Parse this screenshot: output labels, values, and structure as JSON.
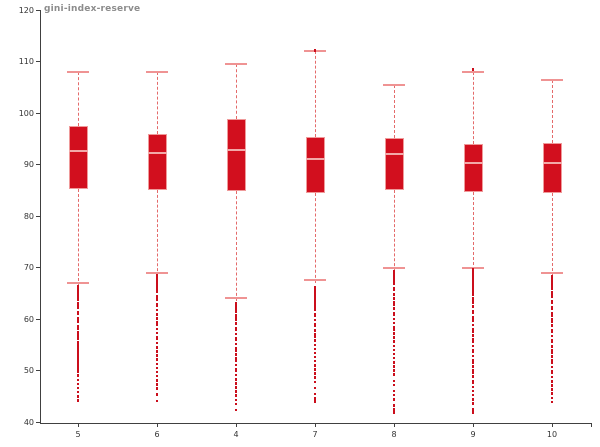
{
  "chart_data": {
    "type": "boxplot",
    "title": "gini-index-reserve",
    "xlabel": "",
    "ylabel": "",
    "ylim": [
      40,
      120
    ],
    "yticks": [
      120,
      110,
      100,
      90,
      80,
      70,
      60,
      50,
      40
    ],
    "grid": false,
    "legend": "none",
    "categories": [
      "5",
      "6",
      "4",
      "7",
      "8",
      "9",
      "10"
    ],
    "series": [
      {
        "category": "5",
        "whisker_high": 108,
        "q3": 97.4,
        "median": 92.6,
        "q1": 85.2,
        "whisker_low": 67,
        "outliers_high": [],
        "outliers_low": [
          66.3,
          65.8,
          65.4,
          65,
          64.6,
          64.2,
          63.8,
          63,
          62.6,
          62.2,
          61.4,
          61,
          60.2,
          59.8,
          59.4,
          58.6,
          58.2,
          57.4,
          57,
          56.6,
          56.2,
          55.4,
          55,
          54.6,
          54.2,
          53.8,
          53.4,
          53,
          52.6,
          52.2,
          51.8,
          51.4,
          51,
          50.6,
          50.2,
          49.8,
          49,
          48.2,
          47.4,
          46.6,
          45.8,
          45,
          44.2
        ]
      },
      {
        "category": "6",
        "whisker_high": 108,
        "q3": 96,
        "median": 92.2,
        "q1": 85,
        "whisker_low": 69,
        "outliers_high": [],
        "outliers_low": [
          68.5,
          68.1,
          67.7,
          67.3,
          66.9,
          66.5,
          66.1,
          65.7,
          65.3,
          64.5,
          64.1,
          63.7,
          62.9,
          62.5,
          61.7,
          60.9,
          60.1,
          59.3,
          58.9,
          58.1,
          57.3,
          56.5,
          56.1,
          55.3,
          54.5,
          53.7,
          52.9,
          52.1,
          51.3,
          50.5,
          49.7,
          48.9,
          48.1,
          47.3,
          46.5,
          45.3,
          44.1
        ]
      },
      {
        "category": "4",
        "whisker_high": 109.5,
        "q3": 98.8,
        "median": 92.9,
        "q1": 84.8,
        "whisker_low": 64,
        "outliers_high": [],
        "outliers_low": [
          63.1,
          62.7,
          62.3,
          61.9,
          61.5,
          60.7,
          60.3,
          59.9,
          59.1,
          58.3,
          57.9,
          57.1,
          56.3,
          55.9,
          55.1,
          54.3,
          53.9,
          53.1,
          52.3,
          51.9,
          51.1,
          50.3,
          49.9,
          49.1,
          48.3,
          47.5,
          46.7,
          45.9,
          45.1,
          44.3,
          43.5,
          42.3
        ]
      },
      {
        "category": "7",
        "whisker_high": 112,
        "q3": 95.4,
        "median": 91,
        "q1": 84.4,
        "whisker_low": 67.5,
        "outliers_high": [
          112.1
        ],
        "outliers_low": [
          66.2,
          65.8,
          65.4,
          65,
          64.6,
          64.2,
          63.8,
          63.4,
          63,
          62.6,
          62.2,
          61.8,
          61,
          60.6,
          59.8,
          59,
          58.6,
          57.8,
          57,
          56.6,
          55.8,
          55,
          54.2,
          53.4,
          52.6,
          51.8,
          51,
          50.2,
          49.4,
          48.6,
          47.8,
          46.6,
          45.4,
          44.6,
          44
        ]
      },
      {
        "category": "8",
        "whisker_high": 105.5,
        "q3": 95.2,
        "median": 92,
        "q1": 85,
        "whisker_low": 70,
        "outliers_high": [],
        "outliers_low": [
          69.2,
          68.8,
          68.4,
          68,
          67.6,
          67.2,
          66.8,
          66,
          65.6,
          64.8,
          64,
          63.2,
          62.8,
          62,
          61.2,
          60.8,
          60,
          59.2,
          58.4,
          58,
          57.2,
          56.4,
          55.6,
          54.8,
          54,
          53.2,
          52.4,
          51.6,
          50.8,
          50,
          49.2,
          48,
          47.2,
          46,
          45.2,
          44.4,
          43.2,
          42.4,
          41.8
        ]
      },
      {
        "category": "9",
        "whisker_high": 108,
        "q3": 94,
        "median": 90.2,
        "q1": 84.7,
        "whisker_low": 70,
        "outliers_high": [
          108.4
        ],
        "outliers_low": [
          69.6,
          69.2,
          68.8,
          68.4,
          68,
          67.6,
          67.2,
          66.8,
          66.4,
          66,
          65.6,
          65.2,
          64.8,
          64,
          63.6,
          63.2,
          62.4,
          61.6,
          61.2,
          60.4,
          60,
          59.6,
          58.8,
          58,
          57.6,
          56.8,
          56,
          55.6,
          54.8,
          54,
          53.6,
          52.8,
          52,
          51.6,
          50.8,
          50,
          49.6,
          48.8,
          48,
          47.6,
          46.8,
          46,
          45.2,
          44.4,
          43.6,
          42.4,
          41.8
        ]
      },
      {
        "category": "10",
        "whisker_high": 106.4,
        "q3": 94.2,
        "median": 90.3,
        "q1": 84.5,
        "whisker_low": 69,
        "outliers_high": [],
        "outliers_low": [
          68.3,
          67.9,
          67.5,
          67.1,
          66.7,
          66.3,
          65.9,
          65.1,
          64.7,
          64.3,
          63.5,
          63.1,
          62.3,
          61.9,
          61.1,
          60.7,
          59.9,
          59.5,
          58.7,
          57.9,
          57.5,
          56.7,
          55.9,
          55.5,
          54.7,
          53.9,
          53.5,
          52.7,
          51.9,
          51.5,
          50.7,
          49.9,
          49.5,
          48.7,
          47.9,
          47.1,
          46.3,
          45.5,
          44.7,
          43.9
        ]
      }
    ]
  },
  "colors": {
    "box_fill": "#d20f1e",
    "box_border": "#ef9a9a",
    "median": "#f2a9a9",
    "whisker": "#e46a6a",
    "cap": "#ef9393",
    "outlier": "#cb0e1c",
    "axis": "#404040",
    "tick_label": "#333333",
    "title": "#8c8c8c"
  }
}
